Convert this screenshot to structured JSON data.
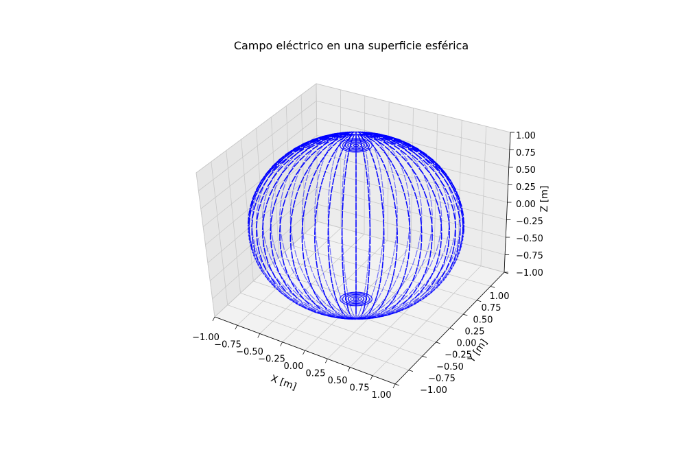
{
  "chart_data": {
    "type": "quiver3d",
    "title": "Campo eléctrico en una superficie esférica",
    "xlabel": "X [m]",
    "ylabel": "Y [m]",
    "zlabel": "Z [m]",
    "xlim": [
      -1.0,
      1.0
    ],
    "ylim": [
      -1.0,
      1.0
    ],
    "zlim": [
      -1.0,
      1.0
    ],
    "x_ticks": [
      "−1.00",
      "−0.75",
      "−0.50",
      "−0.25",
      "0.00",
      "0.25",
      "0.50",
      "0.75",
      "1.00"
    ],
    "y_ticks": [
      "−1.00",
      "−0.75",
      "−0.50",
      "−0.25",
      "0.00",
      "0.25",
      "0.50",
      "0.75",
      "1.00"
    ],
    "z_ticks": [
      "−1.00",
      "−0.75",
      "−0.50",
      "−0.25",
      "0.00",
      "0.25",
      "0.50",
      "0.75",
      "1.00"
    ],
    "grid": true,
    "surface": {
      "shape": "sphere",
      "radius": 1.0,
      "center": [
        0,
        0,
        0
      ]
    },
    "field": {
      "description": "vector field sampled on sphere surface",
      "vector_color": "#0000ff"
    }
  }
}
